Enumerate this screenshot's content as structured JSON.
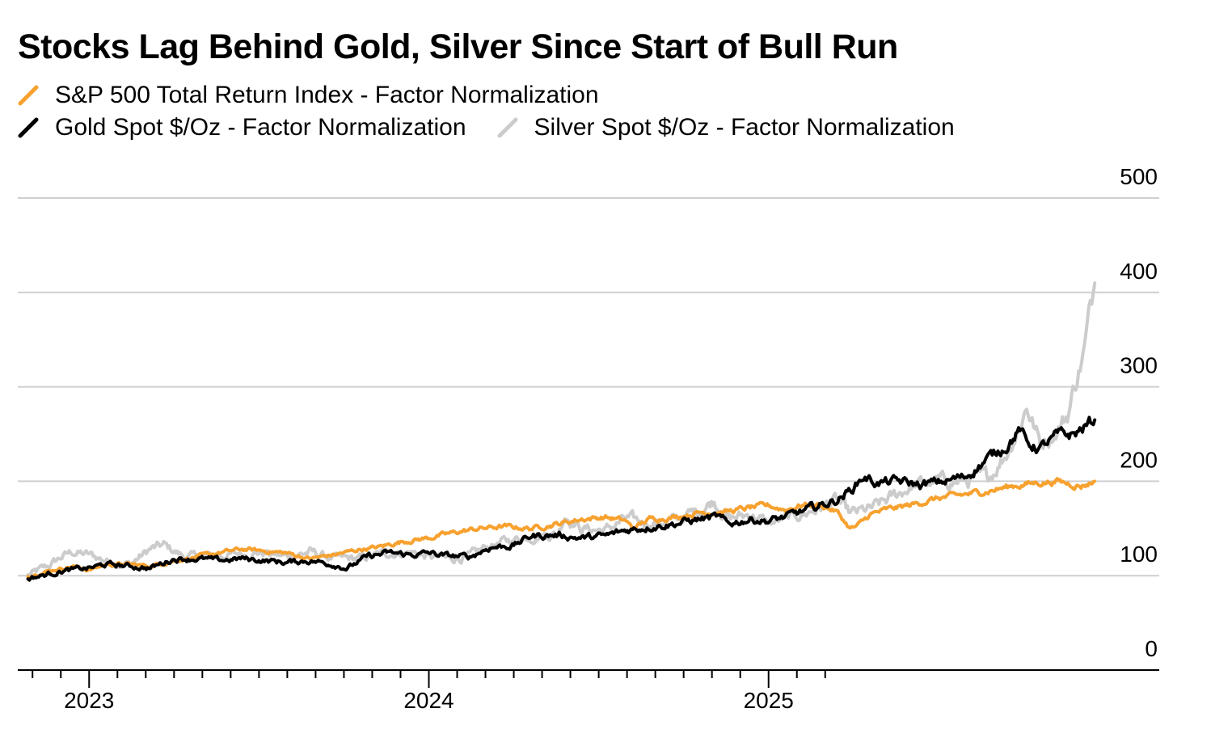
{
  "chart_data": {
    "type": "line",
    "title": "Stocks Lag Behind Gold, Silver Since Start of Bull Run",
    "xlabel": "",
    "ylabel": "",
    "ylim": [
      0,
      500
    ],
    "yticks": [
      0,
      100,
      200,
      300,
      400,
      500
    ],
    "xlim": [
      2022.79,
      2026.15
    ],
    "xticks": [
      {
        "value": 2023.0,
        "label": "2023"
      },
      {
        "value": 2024.0,
        "label": "2024"
      },
      {
        "value": 2025.0,
        "label": "2025"
      }
    ],
    "grid": true,
    "legend_position": "top-left",
    "series": [
      {
        "name": "S&P 500 Total Return Index - Factor Normalization",
        "color": "#f7a12f",
        "x": [
          2022.82,
          2022.88,
          2022.95,
          2023.0,
          2023.05,
          2023.12,
          2023.18,
          2023.25,
          2023.32,
          2023.38,
          2023.45,
          2023.52,
          2023.58,
          2023.65,
          2023.72,
          2023.8,
          2023.85,
          2023.92,
          2024.0,
          2024.08,
          2024.15,
          2024.22,
          2024.3,
          2024.38,
          2024.45,
          2024.52,
          2024.58,
          2024.6,
          2024.65,
          2024.72,
          2024.8,
          2024.88,
          2024.95,
          2025.0,
          2025.05,
          2025.1,
          2025.15,
          2025.2,
          2025.24,
          2025.26,
          2025.3,
          2025.35,
          2025.42,
          2025.5,
          2025.58,
          2025.65,
          2025.72,
          2025.78,
          2025.85,
          2025.92,
          2025.96
        ],
        "values": [
          100,
          105,
          110,
          106,
          112,
          112,
          110,
          116,
          120,
          124,
          128,
          126,
          124,
          118,
          122,
          128,
          130,
          136,
          140,
          146,
          150,
          152,
          150,
          155,
          160,
          162,
          158,
          150,
          160,
          162,
          167,
          168,
          172,
          174,
          170,
          175,
          175,
          168,
          150,
          152,
          165,
          170,
          175,
          182,
          186,
          190,
          195,
          198,
          200,
          195,
          200
        ]
      },
      {
        "name": "Gold Spot $/Oz - Factor Normalization",
        "color": "#000000",
        "x": [
          2022.82,
          2022.86,
          2022.92,
          2023.0,
          2023.05,
          2023.12,
          2023.18,
          2023.25,
          2023.32,
          2023.38,
          2023.45,
          2023.52,
          2023.58,
          2023.65,
          2023.72,
          2023.76,
          2023.82,
          2023.88,
          2023.95,
          2024.0,
          2024.05,
          2024.12,
          2024.18,
          2024.25,
          2024.3,
          2024.38,
          2024.45,
          2024.52,
          2024.58,
          2024.65,
          2024.72,
          2024.8,
          2024.85,
          2024.88,
          2024.95,
          2025.0,
          2025.05,
          2025.1,
          2025.15,
          2025.2,
          2025.24,
          2025.28,
          2025.32,
          2025.38,
          2025.45,
          2025.52,
          2025.58,
          2025.65,
          2025.7,
          2025.74,
          2025.76,
          2025.8,
          2025.85,
          2025.9,
          2025.96
        ],
        "values": [
          97,
          100,
          105,
          108,
          112,
          110,
          108,
          118,
          118,
          116,
          118,
          116,
          114,
          116,
          112,
          108,
          120,
          124,
          122,
          124,
          121,
          120,
          130,
          132,
          142,
          143,
          140,
          142,
          148,
          152,
          155,
          160,
          162,
          155,
          160,
          158,
          162,
          168,
          174,
          180,
          190,
          205,
          198,
          200,
          196,
          200,
          205,
          225,
          238,
          255,
          240,
          235,
          248,
          250,
          265
        ]
      },
      {
        "name": "Silver Spot $/Oz - Factor Normalization",
        "color": "#cccccc",
        "x": [
          2022.82,
          2022.88,
          2022.92,
          2022.95,
          2023.0,
          2023.06,
          2023.12,
          2023.18,
          2023.22,
          2023.28,
          2023.35,
          2023.42,
          2023.5,
          2023.58,
          2023.65,
          2023.72,
          2023.8,
          2023.88,
          2023.95,
          2024.0,
          2024.05,
          2024.12,
          2024.18,
          2024.25,
          2024.3,
          2024.38,
          2024.4,
          2024.45,
          2024.52,
          2024.58,
          2024.65,
          2024.72,
          2024.8,
          2024.84,
          2024.88,
          2024.95,
          2025.0,
          2025.05,
          2025.1,
          2025.15,
          2025.2,
          2025.24,
          2025.3,
          2025.35,
          2025.42,
          2025.5,
          2025.58,
          2025.65,
          2025.7,
          2025.74,
          2025.76,
          2025.8,
          2025.85,
          2025.88,
          2025.9,
          2025.93,
          2025.96
        ],
        "values": [
          100,
          110,
          120,
          125,
          122,
          115,
          112,
          128,
          132,
          120,
          120,
          122,
          125,
          120,
          125,
          118,
          118,
          124,
          125,
          120,
          118,
          120,
          132,
          138,
          142,
          145,
          165,
          150,
          148,
          160,
          155,
          158,
          170,
          180,
          160,
          165,
          155,
          160,
          165,
          172,
          180,
          165,
          170,
          180,
          195,
          200,
          200,
          205,
          230,
          260,
          280,
          240,
          255,
          270,
          300,
          340,
          410
        ]
      }
    ]
  }
}
